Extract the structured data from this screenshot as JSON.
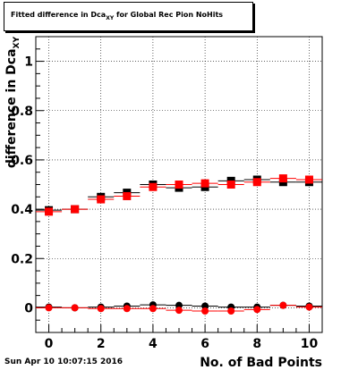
{
  "title": {
    "main": "Fitted difference in Dca",
    "sub": "XY",
    "rest": " for Global Rec Pion NoHits"
  },
  "timestamp": "Sun Apr 10 10:07:15 2016",
  "chart_data": {
    "type": "scatter",
    "xlabel": "No. of Bad Points",
    "ylabel_main": "difference in Dca",
    "ylabel_sub": "XY",
    "xlim": [
      -0.5,
      10.5
    ],
    "ylim": [
      -0.1,
      1.1
    ],
    "xticks": [
      0,
      2,
      4,
      6,
      8,
      10
    ],
    "yticks": [
      0,
      0.2,
      0.4,
      0.6,
      0.8,
      1
    ],
    "ytick_labels": [
      "0",
      "0.2",
      "0.4",
      "0.6",
      "0.8",
      "1"
    ],
    "grid": true,
    "series": [
      {
        "marker": "square",
        "color": "#000000",
        "x": [
          0,
          1,
          2,
          3,
          4,
          5,
          6,
          7,
          8,
          9,
          10
        ],
        "y": [
          0.396,
          0.4,
          0.45,
          0.467,
          0.5,
          0.487,
          0.49,
          0.515,
          0.52,
          0.51,
          0.51
        ]
      },
      {
        "marker": "square",
        "color": "#ff0000",
        "x": [
          0,
          1,
          2,
          3,
          4,
          5,
          6,
          7,
          8,
          9,
          10
        ],
        "y": [
          0.39,
          0.4,
          0.44,
          0.453,
          0.49,
          0.5,
          0.505,
          0.5,
          0.51,
          0.525,
          0.52
        ]
      },
      {
        "marker": "circle",
        "color": "#000000",
        "x": [
          0,
          1,
          2,
          3,
          4,
          5,
          6,
          7,
          8,
          9,
          10
        ],
        "y": [
          0.003,
          0.0,
          0.003,
          0.007,
          0.012,
          0.01,
          0.007,
          0.003,
          0.003,
          0.01,
          0.007
        ]
      },
      {
        "marker": "circle",
        "color": "#ff0000",
        "x": [
          0,
          1,
          2,
          3,
          4,
          5,
          6,
          7,
          8,
          9,
          10
        ],
        "y": [
          0.0,
          0.0,
          -0.003,
          -0.003,
          -0.003,
          -0.01,
          -0.013,
          -0.013,
          -0.007,
          0.01,
          0.003
        ]
      }
    ]
  }
}
